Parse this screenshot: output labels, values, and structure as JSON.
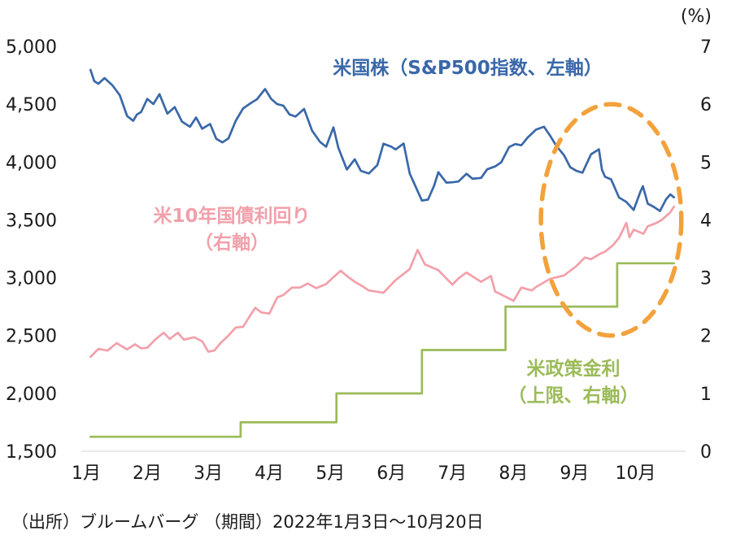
{
  "chart_data": {
    "type": "line",
    "right_axis_unit": "(%)",
    "source": "（出所）ブルームバーグ （期間）2022年1月3日～10月20日",
    "x_ticks": [
      "1月",
      "2月",
      "3月",
      "4月",
      "5月",
      "6月",
      "7月",
      "8月",
      "9月",
      "10月"
    ],
    "left_axis": {
      "min": 1500,
      "max": 5000,
      "step": 500,
      "tick_labels": [
        "5,000",
        "4,500",
        "4,000",
        "3,500",
        "3,000",
        "2,500",
        "2,000",
        "1,500"
      ]
    },
    "right_axis": {
      "min": 0,
      "max": 7,
      "step": 1,
      "tick_labels": [
        "7",
        "6",
        "5",
        "4",
        "3",
        "2",
        "1",
        "0"
      ]
    },
    "labels": {
      "sp500": {
        "text": "米国株（S&P500指数、左軸）",
        "color": "#3A68A8"
      },
      "yield": {
        "line1": "米10年国債利回り",
        "line2": "（右軸）",
        "color": "#F2A0AA"
      },
      "policy": {
        "line1": "米政策金利",
        "line2": "（上限、右軸）",
        "color": "#9BBB59"
      }
    },
    "annotation_ellipse": {
      "color": "#F2A23C",
      "center_x": 9.6,
      "center_value_right": 4.0,
      "rx_months": 1.15,
      "ry_value": 2.0
    },
    "series": [
      {
        "id": "sp500",
        "name": "米国株（S&P500指数、左軸）",
        "axis": "left",
        "color": "#3A68A8",
        "points": [
          [
            1.07,
            4797
          ],
          [
            1.13,
            4700
          ],
          [
            1.2,
            4677
          ],
          [
            1.3,
            4726
          ],
          [
            1.43,
            4663
          ],
          [
            1.55,
            4577
          ],
          [
            1.67,
            4398
          ],
          [
            1.77,
            4356
          ],
          [
            1.83,
            4410
          ],
          [
            1.9,
            4432
          ],
          [
            2.0,
            4546
          ],
          [
            2.1,
            4501
          ],
          [
            2.2,
            4587
          ],
          [
            2.33,
            4419
          ],
          [
            2.45,
            4475
          ],
          [
            2.57,
            4349
          ],
          [
            2.7,
            4305
          ],
          [
            2.8,
            4385
          ],
          [
            2.9,
            4288
          ],
          [
            3.03,
            4329
          ],
          [
            3.13,
            4201
          ],
          [
            3.23,
            4170
          ],
          [
            3.33,
            4204
          ],
          [
            3.45,
            4357
          ],
          [
            3.57,
            4463
          ],
          [
            3.7,
            4511
          ],
          [
            3.8,
            4543
          ],
          [
            3.93,
            4631
          ],
          [
            4.03,
            4546
          ],
          [
            4.13,
            4500
          ],
          [
            4.23,
            4488
          ],
          [
            4.33,
            4412
          ],
          [
            4.43,
            4393
          ],
          [
            4.57,
            4459
          ],
          [
            4.7,
            4272
          ],
          [
            4.83,
            4175
          ],
          [
            4.93,
            4132
          ],
          [
            5.05,
            4300
          ],
          [
            5.13,
            4124
          ],
          [
            5.27,
            3935
          ],
          [
            5.4,
            4024
          ],
          [
            5.5,
            3924
          ],
          [
            5.63,
            3901
          ],
          [
            5.77,
            3974
          ],
          [
            5.87,
            4158
          ],
          [
            6.0,
            4132
          ],
          [
            6.07,
            4109
          ],
          [
            6.2,
            4160
          ],
          [
            6.3,
            3901
          ],
          [
            6.43,
            3750
          ],
          [
            6.5,
            3667
          ],
          [
            6.6,
            3675
          ],
          [
            6.7,
            3796
          ],
          [
            6.77,
            3912
          ],
          [
            6.9,
            3822
          ],
          [
            7.0,
            3825
          ],
          [
            7.1,
            3832
          ],
          [
            7.23,
            3899
          ],
          [
            7.33,
            3855
          ],
          [
            7.47,
            3863
          ],
          [
            7.57,
            3937
          ],
          [
            7.7,
            3962
          ],
          [
            7.8,
            3998
          ],
          [
            7.93,
            4130
          ],
          [
            8.03,
            4155
          ],
          [
            8.13,
            4145
          ],
          [
            8.23,
            4210
          ],
          [
            8.37,
            4280
          ],
          [
            8.5,
            4305
          ],
          [
            8.6,
            4228
          ],
          [
            8.7,
            4141
          ],
          [
            8.83,
            4058
          ],
          [
            8.93,
            3955
          ],
          [
            9.03,
            3924
          ],
          [
            9.13,
            3908
          ],
          [
            9.27,
            4067
          ],
          [
            9.4,
            4110
          ],
          [
            9.45,
            3933
          ],
          [
            9.5,
            3873
          ],
          [
            9.6,
            3850
          ],
          [
            9.73,
            3693
          ],
          [
            9.85,
            3655
          ],
          [
            9.97,
            3586
          ],
          [
            10.08,
            3745
          ],
          [
            10.12,
            3791
          ],
          [
            10.2,
            3640
          ],
          [
            10.3,
            3612
          ],
          [
            10.4,
            3577
          ],
          [
            10.5,
            3678
          ],
          [
            10.57,
            3720
          ],
          [
            10.63,
            3695
          ]
        ]
      },
      {
        "id": "ust10y",
        "name": "米10年国債利回り（右軸）",
        "axis": "right",
        "color": "#F2A0AA",
        "points": [
          [
            1.07,
            1.63
          ],
          [
            1.2,
            1.77
          ],
          [
            1.35,
            1.74
          ],
          [
            1.5,
            1.87
          ],
          [
            1.67,
            1.76
          ],
          [
            1.8,
            1.85
          ],
          [
            1.9,
            1.78
          ],
          [
            2.0,
            1.79
          ],
          [
            2.13,
            1.93
          ],
          [
            2.27,
            2.05
          ],
          [
            2.37,
            1.94
          ],
          [
            2.5,
            2.05
          ],
          [
            2.6,
            1.93
          ],
          [
            2.77,
            1.97
          ],
          [
            2.9,
            1.9
          ],
          [
            3.0,
            1.72
          ],
          [
            3.1,
            1.74
          ],
          [
            3.2,
            1.87
          ],
          [
            3.33,
            2.0
          ],
          [
            3.45,
            2.14
          ],
          [
            3.57,
            2.15
          ],
          [
            3.67,
            2.32
          ],
          [
            3.77,
            2.48
          ],
          [
            3.87,
            2.4
          ],
          [
            4.0,
            2.38
          ],
          [
            4.13,
            2.66
          ],
          [
            4.23,
            2.7
          ],
          [
            4.37,
            2.83
          ],
          [
            4.5,
            2.83
          ],
          [
            4.63,
            2.9
          ],
          [
            4.77,
            2.82
          ],
          [
            4.93,
            2.89
          ],
          [
            5.03,
            2.99
          ],
          [
            5.17,
            3.12
          ],
          [
            5.27,
            3.03
          ],
          [
            5.4,
            2.93
          ],
          [
            5.53,
            2.85
          ],
          [
            5.63,
            2.78
          ],
          [
            5.87,
            2.74
          ],
          [
            6.07,
            2.96
          ],
          [
            6.3,
            3.15
          ],
          [
            6.43,
            3.48
          ],
          [
            6.55,
            3.23
          ],
          [
            6.77,
            3.13
          ],
          [
            7.0,
            2.88
          ],
          [
            7.1,
            2.99
          ],
          [
            7.23,
            3.09
          ],
          [
            7.47,
            2.93
          ],
          [
            7.63,
            3.03
          ],
          [
            7.7,
            2.76
          ],
          [
            7.93,
            2.64
          ],
          [
            8.0,
            2.6
          ],
          [
            8.13,
            2.83
          ],
          [
            8.3,
            2.78
          ],
          [
            8.37,
            2.84
          ],
          [
            8.6,
            2.98
          ],
          [
            8.83,
            3.04
          ],
          [
            9.03,
            3.2
          ],
          [
            9.17,
            3.35
          ],
          [
            9.27,
            3.32
          ],
          [
            9.43,
            3.42
          ],
          [
            9.5,
            3.45
          ],
          [
            9.63,
            3.56
          ],
          [
            9.73,
            3.69
          ],
          [
            9.85,
            3.95
          ],
          [
            9.9,
            3.7
          ],
          [
            9.97,
            3.83
          ],
          [
            10.13,
            3.76
          ],
          [
            10.2,
            3.89
          ],
          [
            10.33,
            3.94
          ],
          [
            10.43,
            4.0
          ],
          [
            10.57,
            4.13
          ],
          [
            10.63,
            4.23
          ]
        ]
      },
      {
        "id": "policy",
        "name": "米政策金利（上限、右軸）",
        "axis": "right",
        "color": "#9BBB59",
        "points": [
          [
            1.07,
            0.25
          ],
          [
            3.53,
            0.25
          ],
          [
            3.53,
            0.5
          ],
          [
            5.1,
            0.5
          ],
          [
            5.1,
            1.0
          ],
          [
            6.5,
            1.0
          ],
          [
            6.5,
            1.75
          ],
          [
            7.87,
            1.75
          ],
          [
            7.87,
            2.5
          ],
          [
            9.7,
            2.5
          ],
          [
            9.7,
            3.25
          ],
          [
            10.63,
            3.25
          ]
        ]
      }
    ]
  }
}
